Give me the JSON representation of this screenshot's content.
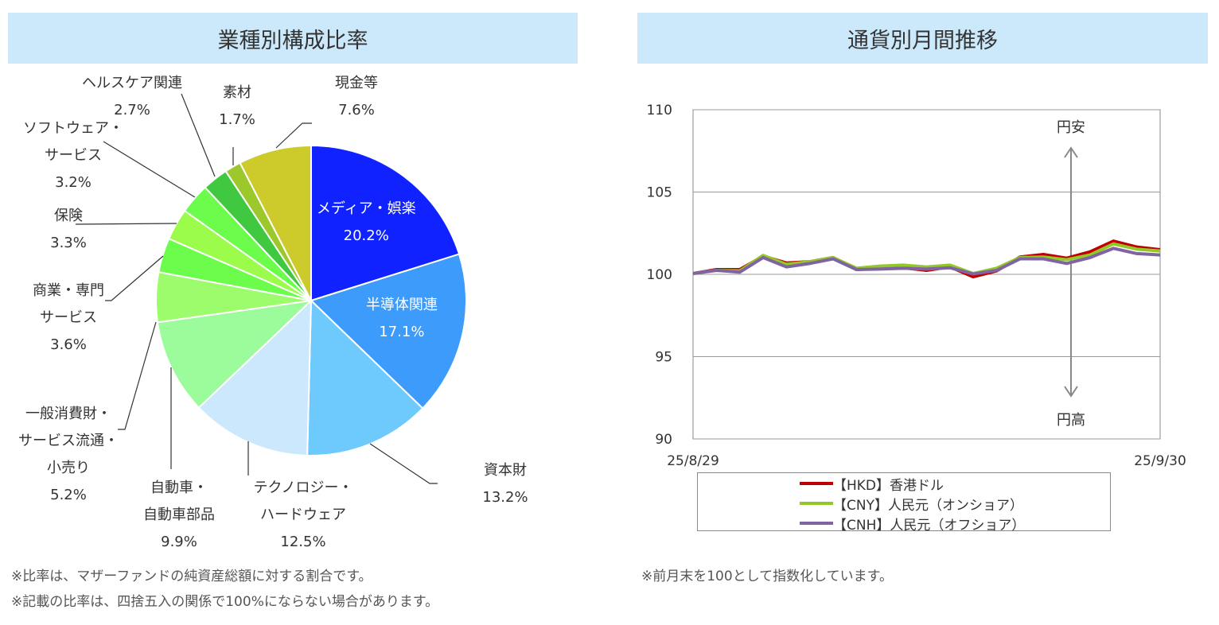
{
  "left_panel": {
    "title": "業種別構成比率",
    "notes": [
      "※比率は、マザーファンドの純資産総額に対する割合です。",
      "※記載の比率は、四捨五入の関係で100%にならない場合があります。"
    ]
  },
  "right_panel": {
    "title": "通貨別月間推移",
    "notes": [
      "※前月末を100として指数化しています。"
    ]
  },
  "chart_data": [
    {
      "type": "pie",
      "start": "12 o'clock",
      "direction": "clockwise",
      "slices": [
        {
          "label": "メディア・娯楽",
          "value": 20.2,
          "text": "20.2%",
          "color": "#0f22ff"
        },
        {
          "label": "半導体関連",
          "value": 17.1,
          "text": "17.1%",
          "color": "#3d9bfb"
        },
        {
          "label": "資本財",
          "value": 13.2,
          "text": "13.2%",
          "color": "#6ecafc"
        },
        {
          "label": "テクノロジー・\nハードウェア",
          "value": 12.5,
          "text": "12.5%",
          "color": "#cbe8fc"
        },
        {
          "label": "自動車・\n自動車部品",
          "value": 9.9,
          "text": "9.9%",
          "color": "#9cfc9c"
        },
        {
          "label": "一般消費財・\nサービス流通・\n小売り",
          "value": 5.2,
          "text": "5.2%",
          "color": "#9cfc6c"
        },
        {
          "label": "商業・専門\nサービス",
          "value": 3.6,
          "text": "3.6%",
          "color": "#6cfc4c"
        },
        {
          "label": "保険",
          "value": 3.3,
          "text": "3.3%",
          "color": "#9cfc4c"
        },
        {
          "label": "ソフトウェア・\nサービス",
          "value": 3.2,
          "text": "3.2%",
          "color": "#6cfc4c"
        },
        {
          "label": "ヘルスケア関連",
          "value": 2.7,
          "text": "2.7%",
          "color": "#40c840"
        },
        {
          "label": "素材",
          "value": 1.7,
          "text": "1.7%",
          "color": "#9cc82c"
        },
        {
          "label": "現金等",
          "value": 7.6,
          "text": "7.6%",
          "color": "#cdca2c"
        }
      ]
    },
    {
      "type": "line",
      "ylim": [
        90,
        110
      ],
      "yticks": [
        "90",
        "95",
        "100",
        "105",
        "110"
      ],
      "grid": true,
      "x_start_label": "25/8/29",
      "x_end_label": "25/9/30",
      "annotations": {
        "up": "円安",
        "down": "円高"
      },
      "legend": "bottom",
      "series": [
        {
          "name": "【HKD】香港ドル",
          "color": "#c00000",
          "values": [
            100.05,
            100.29,
            100.29,
            101.1,
            100.69,
            100.77,
            101.02,
            100.29,
            100.37,
            100.4,
            100.24,
            100.45,
            99.85,
            100.21,
            101.05,
            101.21,
            100.98,
            101.37,
            102.02,
            101.66,
            101.5
          ]
        },
        {
          "name": "【CNY】人民元（オンショア）",
          "color": "#92c828",
          "values": [
            100.05,
            100.24,
            100.21,
            101.15,
            100.61,
            100.77,
            101.02,
            100.37,
            100.5,
            100.56,
            100.45,
            100.56,
            100.05,
            100.37,
            101.02,
            101.05,
            100.89,
            101.18,
            101.85,
            101.53,
            101.42
          ]
        },
        {
          "name": "【CNH】人民元（オフショア）",
          "color": "#8064a2",
          "values": [
            100.05,
            100.24,
            100.13,
            101.02,
            100.45,
            100.66,
            100.94,
            100.29,
            100.32,
            100.37,
            100.32,
            100.4,
            100.02,
            100.24,
            100.94,
            100.94,
            100.66,
            101.02,
            101.58,
            101.26,
            101.18
          ]
        }
      ]
    }
  ]
}
